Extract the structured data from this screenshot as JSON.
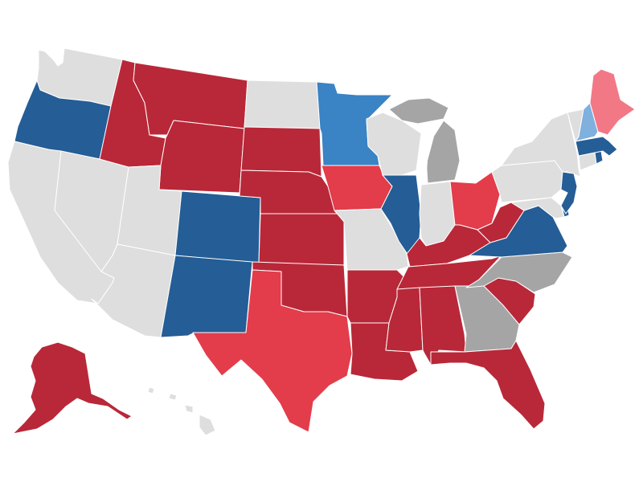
{
  "map": {
    "legend": {
      "strong_dem": "#255d96",
      "lean_dem": "#3a83c4",
      "tilt_dem": "#7fb0de",
      "strong_rep": "#b92838",
      "lean_rep": "#e33c4a",
      "tilt_rep": "#f27886",
      "toss_up": "#a5a5a5",
      "no_race": "#dedede"
    },
    "states": [
      {
        "id": "WA",
        "rating": "no_race"
      },
      {
        "id": "OR",
        "rating": "strong_dem"
      },
      {
        "id": "CA",
        "rating": "no_race"
      },
      {
        "id": "NV",
        "rating": "no_race"
      },
      {
        "id": "ID",
        "rating": "strong_rep"
      },
      {
        "id": "MT",
        "rating": "strong_rep"
      },
      {
        "id": "WY",
        "rating": "strong_rep"
      },
      {
        "id": "UT",
        "rating": "no_race"
      },
      {
        "id": "AZ",
        "rating": "no_race"
      },
      {
        "id": "CO",
        "rating": "strong_dem"
      },
      {
        "id": "NM",
        "rating": "strong_dem"
      },
      {
        "id": "ND",
        "rating": "no_race"
      },
      {
        "id": "SD",
        "rating": "strong_rep"
      },
      {
        "id": "NE",
        "rating": "strong_rep"
      },
      {
        "id": "KS",
        "rating": "strong_rep"
      },
      {
        "id": "OK",
        "rating": "strong_rep"
      },
      {
        "id": "TX",
        "rating": "lean_rep"
      },
      {
        "id": "MN",
        "rating": "lean_dem"
      },
      {
        "id": "IA",
        "rating": "lean_rep"
      },
      {
        "id": "MO",
        "rating": "no_race"
      },
      {
        "id": "AR",
        "rating": "strong_rep"
      },
      {
        "id": "LA",
        "rating": "strong_rep"
      },
      {
        "id": "WI",
        "rating": "no_race"
      },
      {
        "id": "IL",
        "rating": "strong_dem"
      },
      {
        "id": "MI",
        "rating": "toss_up"
      },
      {
        "id": "IN",
        "rating": "no_race"
      },
      {
        "id": "OH",
        "rating": "lean_rep"
      },
      {
        "id": "KY",
        "rating": "strong_rep"
      },
      {
        "id": "TN",
        "rating": "strong_rep"
      },
      {
        "id": "MS",
        "rating": "strong_rep"
      },
      {
        "id": "AL",
        "rating": "strong_rep"
      },
      {
        "id": "GA",
        "rating": "toss_up"
      },
      {
        "id": "FL",
        "rating": "strong_rep"
      },
      {
        "id": "SC",
        "rating": "strong_rep"
      },
      {
        "id": "NC",
        "rating": "toss_up"
      },
      {
        "id": "VA",
        "rating": "strong_dem"
      },
      {
        "id": "WV",
        "rating": "strong_rep"
      },
      {
        "id": "PA",
        "rating": "no_race"
      },
      {
        "id": "NY",
        "rating": "no_race"
      },
      {
        "id": "VT",
        "rating": "no_race"
      },
      {
        "id": "NH",
        "rating": "tilt_dem"
      },
      {
        "id": "ME",
        "rating": "tilt_rep"
      },
      {
        "id": "MA",
        "rating": "strong_dem"
      },
      {
        "id": "RI",
        "rating": "strong_dem"
      },
      {
        "id": "CT",
        "rating": "no_race"
      },
      {
        "id": "NJ",
        "rating": "strong_dem"
      },
      {
        "id": "DE",
        "rating": "strong_dem"
      },
      {
        "id": "MD",
        "rating": "no_race"
      },
      {
        "id": "AK",
        "rating": "strong_rep"
      },
      {
        "id": "HI",
        "rating": "no_race"
      }
    ]
  }
}
